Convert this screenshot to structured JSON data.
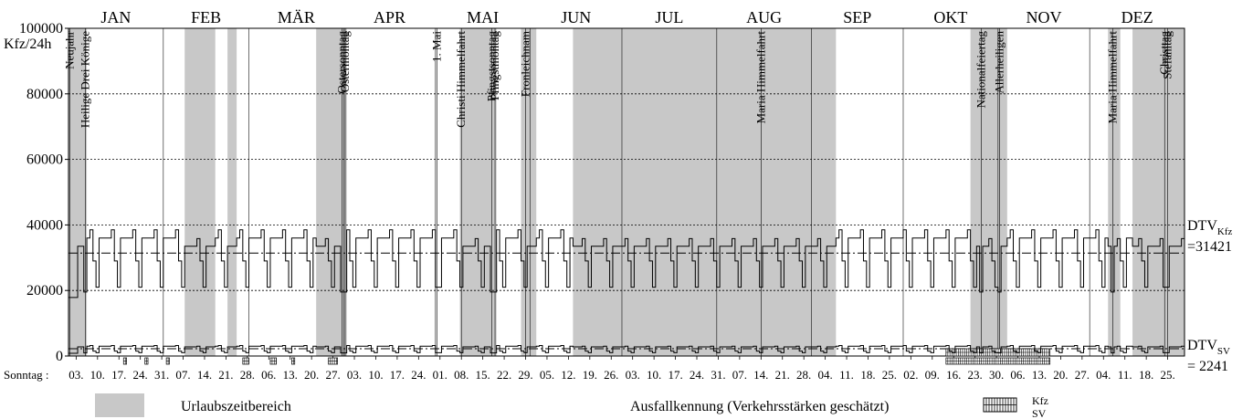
{
  "chart_data": {
    "type": "line",
    "ylabel": "Kfz/24h",
    "ylim": [
      0,
      100000
    ],
    "yticks": [
      0,
      20000,
      40000,
      60000,
      80000,
      100000
    ],
    "months": [
      "JAN",
      "FEB",
      "MÄR",
      "APR",
      "MAI",
      "JUN",
      "JUL",
      "AUG",
      "SEP",
      "OKT",
      "NOV",
      "DEZ"
    ],
    "sunday_axis_label": "Sonntag :",
    "sundays": [
      "03.",
      "10.",
      "17.",
      "24.",
      "31.",
      "07.",
      "14.",
      "21.",
      "28.",
      "06.",
      "13.",
      "20.",
      "27.",
      "03.",
      "10.",
      "17.",
      "24.",
      "01.",
      "08.",
      "15.",
      "22.",
      "29.",
      "05.",
      "12.",
      "19.",
      "26.",
      "03.",
      "10.",
      "17.",
      "24.",
      "31.",
      "07.",
      "14.",
      "21.",
      "28.",
      "04.",
      "11.",
      "18.",
      "25.",
      "02.",
      "09.",
      "16.",
      "23.",
      "30.",
      "06.",
      "13.",
      "20.",
      "27.",
      "04.",
      "11.",
      "18.",
      "25."
    ],
    "holidays": [
      {
        "label": "Neujahr",
        "date": "01.01."
      },
      {
        "label": "Heilige Drei Könige",
        "date": "06.01."
      },
      {
        "label": "Ostersonntag",
        "date": "31.03."
      },
      {
        "label": "Ostermontag",
        "date": "01.04."
      },
      {
        "label": "1. Mai",
        "date": "01.05."
      },
      {
        "label": "Christi Himmelfahrt",
        "date": "09.05."
      },
      {
        "label": "Pfingstsonntag",
        "date": "19.05."
      },
      {
        "label": "Pfingstmontag",
        "date": "20.05."
      },
      {
        "label": "Fronleichnam",
        "date": "30.05."
      },
      {
        "label": "Maria Himmelfahrt",
        "date": "15.08."
      },
      {
        "label": "Nationalfeiertag",
        "date": "26.10."
      },
      {
        "label": "Allerheiligen",
        "date": "01.11."
      },
      {
        "label": "Maria Himmelfahrt",
        "date": "08.12."
      },
      {
        "label": "Christtag",
        "date": "25.12."
      },
      {
        "label": "Stefanitag",
        "date": "26.12."
      }
    ],
    "vacation_periods": [
      {
        "start": "01.01.",
        "end": "06.01."
      },
      {
        "start": "08.02.",
        "end": "17.02."
      },
      {
        "start": "22.02.",
        "end": "24.02."
      },
      {
        "start": "23.03.",
        "end": "01.04."
      },
      {
        "start": "09.05.",
        "end": "20.05."
      },
      {
        "start": "29.05.",
        "end": "02.06."
      },
      {
        "start": "15.06.",
        "end": "08.09."
      },
      {
        "start": "26.10.",
        "end": "28.10."
      },
      {
        "start": "23.10.",
        "end": "03.11."
      },
      {
        "start": "07.12.",
        "end": "10.12."
      },
      {
        "start": "15.12.",
        "end": "31.12."
      }
    ],
    "failure_periods_kfz": [
      {
        "start": "15.10.",
        "end": "17.11."
      }
    ],
    "failure_periods_sv": [
      {
        "start": "19.01.",
        "end": "19.01."
      },
      {
        "start": "26.01.",
        "end": "26.01."
      },
      {
        "start": "02.02.",
        "end": "02.02."
      },
      {
        "start": "27.02.",
        "end": "28.02."
      },
      {
        "start": "08.03.",
        "end": "09.03."
      },
      {
        "start": "15.03.",
        "end": "15.03."
      },
      {
        "start": "27.03.",
        "end": "29.03."
      },
      {
        "start": "15.10.",
        "end": "17.11."
      }
    ],
    "series": [
      {
        "name": "Kfz",
        "weekday": 36000,
        "saturday": 29000,
        "sunday": 21000
      },
      {
        "name": "SV",
        "weekday": 3000,
        "saturday": 1500,
        "sunday": 1000
      }
    ],
    "dtv_kfz_label": "DTV",
    "dtv_kfz_sub": "Kfz",
    "dtv_kfz_value": 31421,
    "dtv_kfz_text": "=31421",
    "dtv_sv_label": "DTV",
    "dtv_sv_sub": "SV",
    "dtv_sv_value": 2241,
    "dtv_sv_text": "= 2241",
    "grid": true
  },
  "legend": {
    "vacation": "Urlaubszeitbereich",
    "failure": "Ausfallkennung (Verkehrsstärken geschätzt)",
    "kfz": "Kfz",
    "sv": "SV"
  },
  "colors": {
    "vacation": "#c8c8c8",
    "line": "#000000",
    "background": "#ffffff"
  }
}
